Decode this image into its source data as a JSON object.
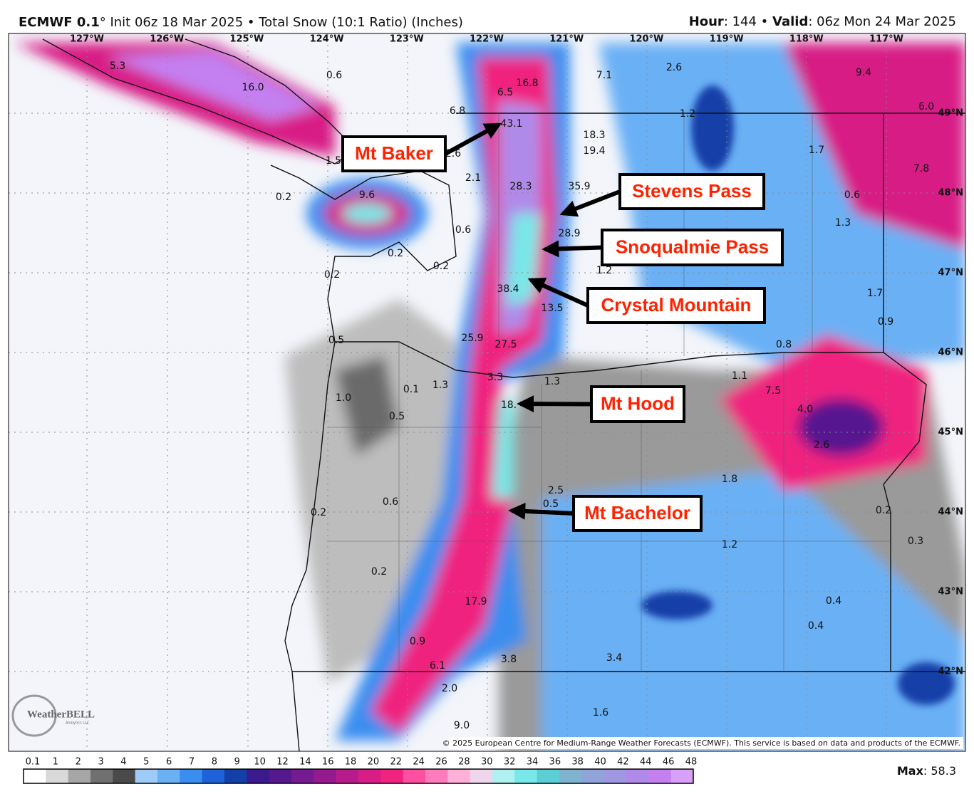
{
  "header": {
    "model": "ECMWF 0.1",
    "run": "° Init 06z 18 Mar 2025 • Total Snow (10:1 Ratio) (Inches)",
    "hour_label": "Hour",
    "hour_value": ": 144 • ",
    "valid_label": "Valid",
    "valid_value": ": 06z Mon 24 Mar 2025"
  },
  "map": {
    "longitude_labels": [
      "127°W",
      "126°W",
      "125°W",
      "124°W",
      "123°W",
      "122°W",
      "121°W",
      "120°W",
      "119°W",
      "118°W",
      "117°W"
    ],
    "latitude_labels": [
      "49°N",
      "48°N",
      "47°N",
      "46°N",
      "45°N",
      "44°N",
      "43°N",
      "42°N"
    ],
    "value_labels": [
      "5.3",
      "16.0",
      "0.6",
      "6.5",
      "16.8",
      "7.1",
      "2.6",
      "9.4",
      "6.8",
      "43.1",
      "1.2",
      "6.0",
      "18.3",
      "19.4",
      "1.5",
      "2.6",
      "1.7",
      "7.8",
      "2.1",
      "28.3",
      "35.9",
      "0.2",
      "9.6",
      "0.6",
      "28.9",
      "1.3",
      "0.6",
      "0.2",
      "0.2",
      "1.2",
      "0.2",
      "38.4",
      "13.5",
      "1.7",
      "0.9",
      "25.9",
      "27.5",
      "0.8",
      "0.5",
      "1.1",
      "3.3",
      "1.3",
      "0.1",
      "1.3",
      "7.5",
      "1.0",
      "4.0",
      "0.5",
      "18.",
      "2.6",
      "1.8",
      "2.5",
      "0.5",
      "0.6",
      "0.2",
      "0.2",
      "1.2",
      "0.3",
      "0.2",
      "0.4",
      "17.9",
      "0.4",
      "0.9",
      "3.8",
      "3.4",
      "6.1",
      "2.0",
      "1.6",
      "9.0"
    ],
    "callouts": [
      "Mt Baker",
      "Stevens Pass",
      "Snoqualmie Pass",
      "Crystal Mountain",
      "Mt Hood",
      "Mt Bachelor"
    ],
    "copyright": "© 2025 European Centre for Medium-Range Weather Forecasts (ECMWF). This service is based on data and products of the ECMWF.",
    "logo": "WeatherBELL",
    "logo_sub": "Analytics LLC"
  },
  "colorbar": {
    "ticks": [
      0.1,
      1,
      2,
      3,
      4,
      5,
      6,
      7,
      8,
      9,
      10,
      12,
      14,
      16,
      18,
      20,
      22,
      24,
      26,
      28,
      30,
      32,
      34,
      36,
      38,
      40,
      42,
      44,
      46,
      48
    ],
    "colors": [
      "#ffffff",
      "#d9d9d9",
      "#a6a6a6",
      "#707070",
      "#4a4a4a",
      "#9ecbf7",
      "#6ab0f5",
      "#3a8ef0",
      "#1d62d8",
      "#123fa8",
      "#3a1a8c",
      "#55188f",
      "#761a91",
      "#951a8f",
      "#b81c8c",
      "#d81e86",
      "#f0247f",
      "#ff4fa0",
      "#ff7cbc",
      "#ffb0d8",
      "#f0d6ec",
      "#b0f0f0",
      "#78e8e8",
      "#5ccfd6",
      "#7fb3cf",
      "#8fa4d8",
      "#9f97e0",
      "#b08ae8",
      "#c47ff0",
      "#d8a0f8"
    ],
    "max_label": "Max",
    "max_value": 58.3
  }
}
